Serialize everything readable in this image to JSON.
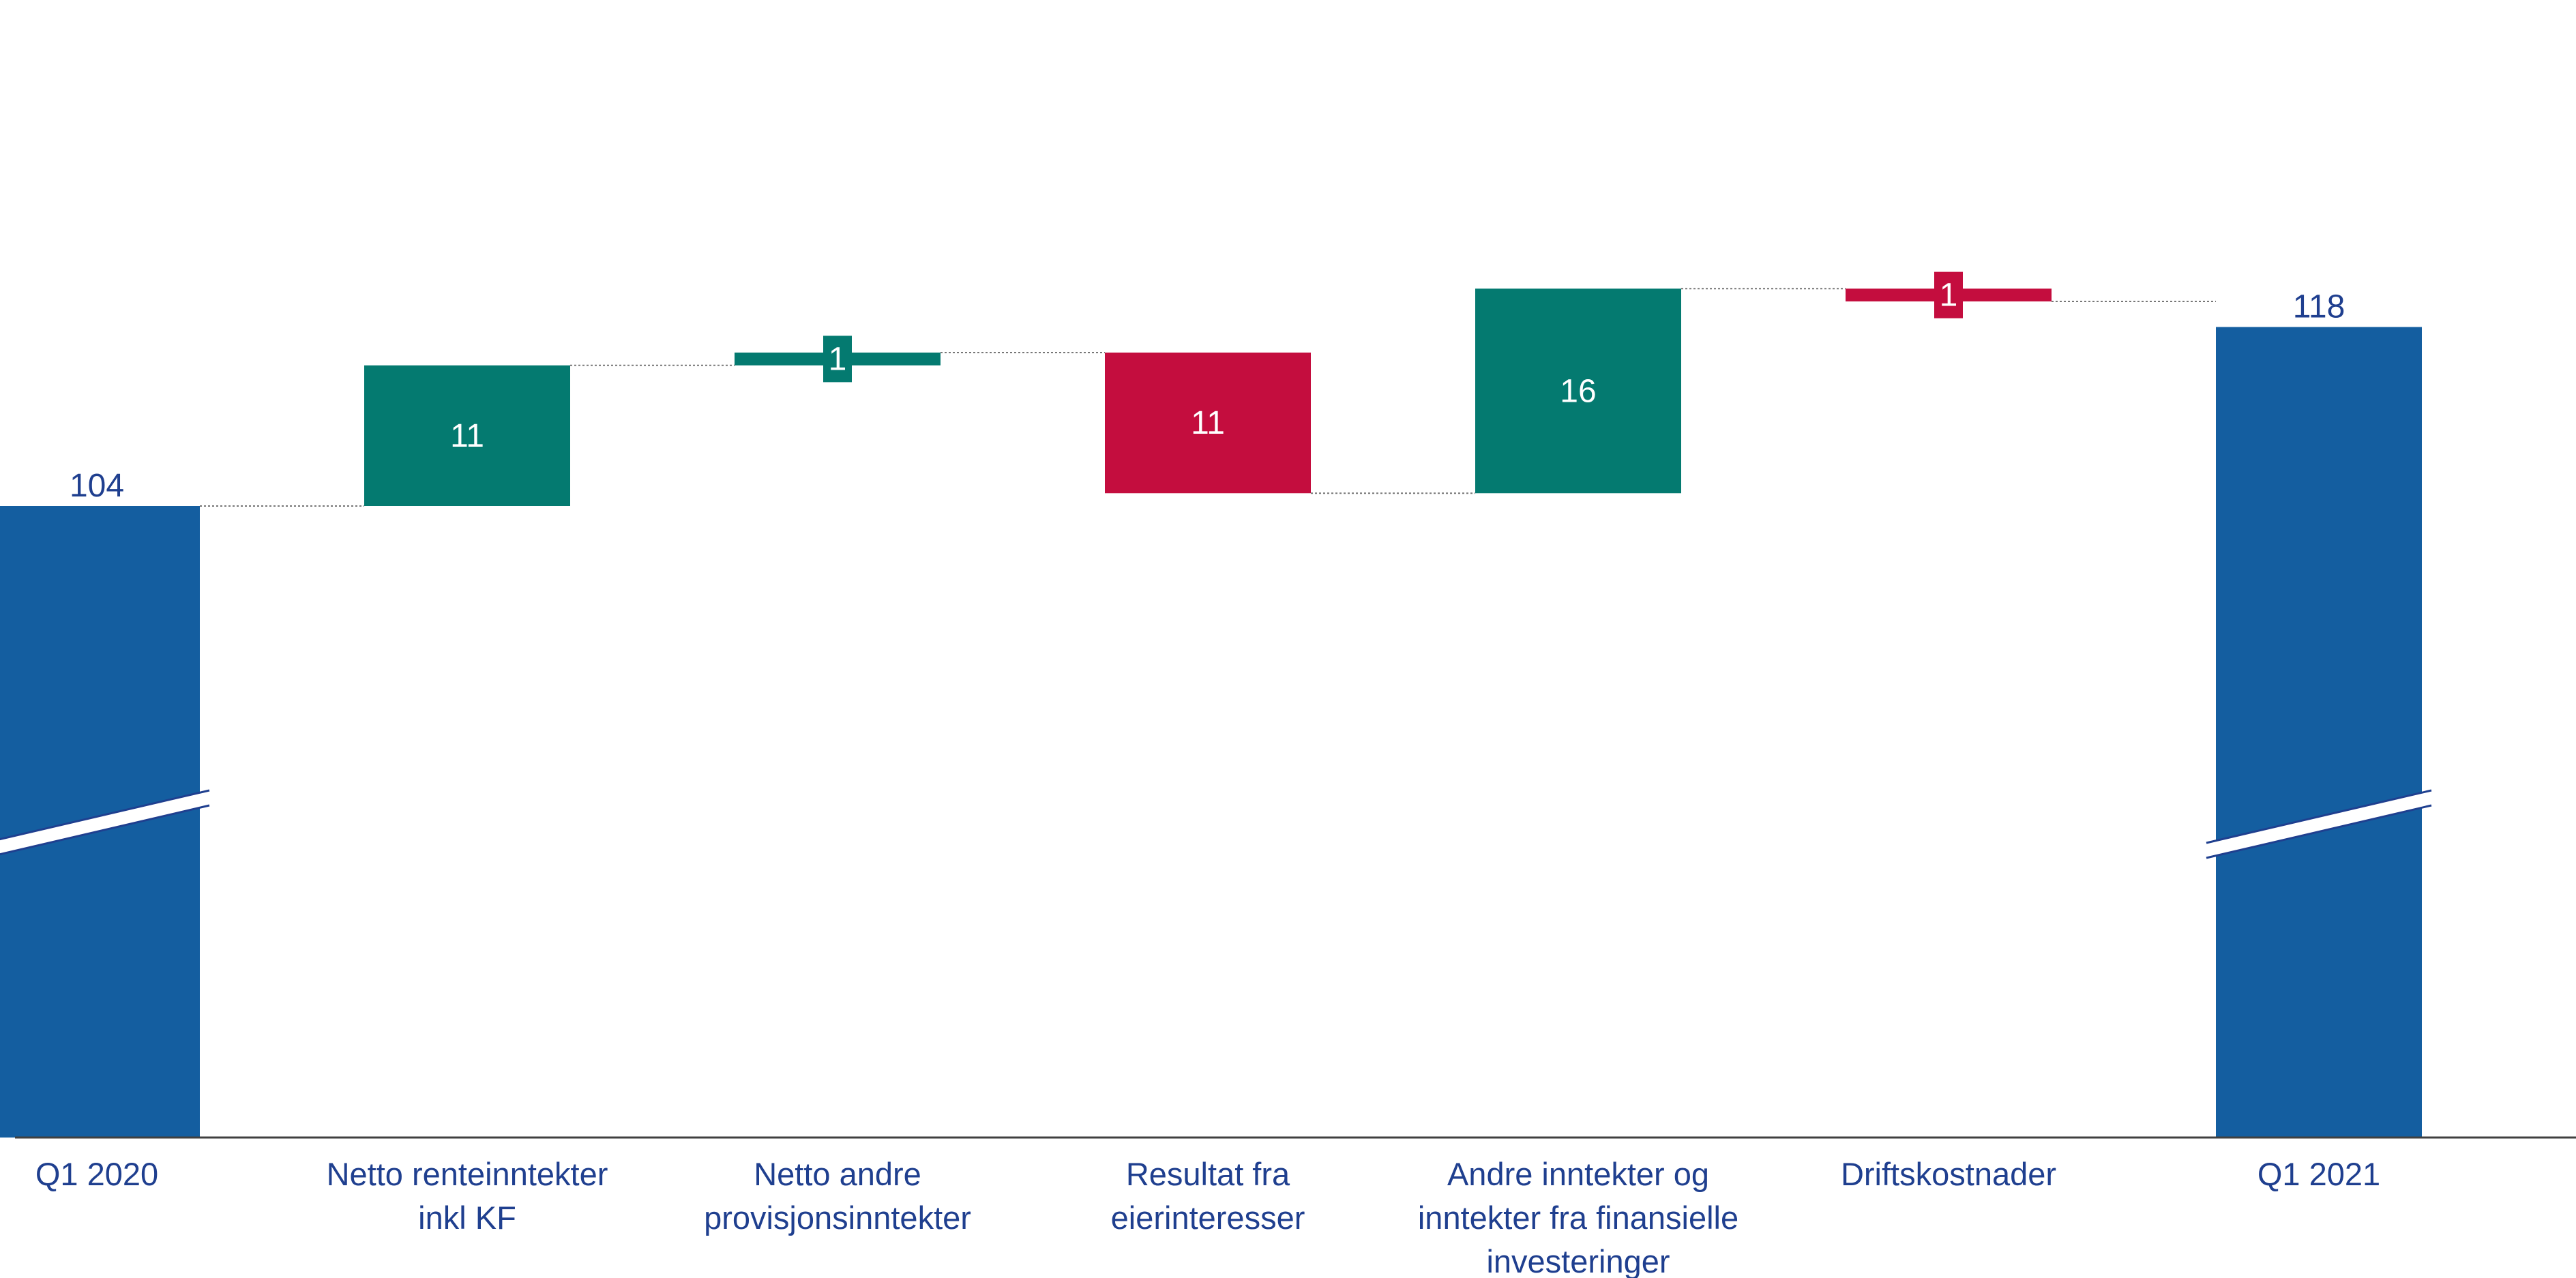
{
  "chart_data": {
    "type": "waterfall",
    "title": "",
    "xlabel": "",
    "ylabel": "",
    "axis_break": true,
    "grid": false,
    "legend": "none",
    "colors": {
      "total": "#145ea0",
      "increase": "#047a70",
      "decrease": "#c40d3e",
      "total_label": "#1f3f8f",
      "inner_label": "#ffffff",
      "category_label": "#1f3f8f"
    },
    "bars": [
      {
        "category": [
          "Q1 2020"
        ],
        "kind": "total",
        "value": 104,
        "label": "104"
      },
      {
        "category": [
          "Netto renteinntekter",
          "inkl KF"
        ],
        "kind": "increase",
        "value": 11,
        "label": "11"
      },
      {
        "category": [
          "Netto andre",
          "provisjonsinntekter"
        ],
        "kind": "increase",
        "value": 1,
        "label": "1"
      },
      {
        "category": [
          "Resultat fra",
          "eierinteresser"
        ],
        "kind": "decrease",
        "value": -11,
        "label": "11"
      },
      {
        "category": [
          "Andre inntekter og",
          "inntekter fra finansielle",
          "investeringer"
        ],
        "kind": "increase",
        "value": 16,
        "label": "16"
      },
      {
        "category": [
          "Driftskostnader"
        ],
        "kind": "decrease",
        "value": -1,
        "label": "1"
      },
      {
        "category": [
          "Q1 2021"
        ],
        "kind": "total",
        "value": 118,
        "label": "118"
      }
    ]
  }
}
